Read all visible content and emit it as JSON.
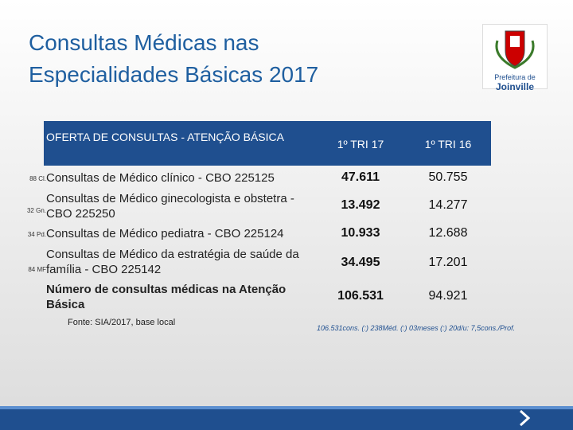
{
  "title": [
    "Consultas Médicas nas",
    "Especialidades Básicas 2017"
  ],
  "logo": {
    "line1": "Prefeitura de",
    "line2": "Joinville"
  },
  "table": {
    "header": [
      "OFERTA DE CONSULTAS - ATENÇÃO BÁSICA",
      "1º TRI 17",
      "1º TRI 16"
    ],
    "rows": [
      [
        "88 Cl.",
        "Consultas de Médico clínico - CBO 225125",
        "47.611",
        "50.755"
      ],
      [
        "32 Gn.",
        "Consultas de Médico ginecologista e obstetra - CBO 225250",
        "13.492",
        "14.277"
      ],
      [
        "34 Pd.",
        "Consultas de Médico pediatra - CBO 225124",
        "10.933",
        "12.688"
      ],
      [
        "84 MF",
        "Consultas de Médico da estratégia de saúde da família - CBO 225142",
        "34.495",
        "17.201"
      ],
      [
        "",
        "Número de consultas médicas na Atenção Básica",
        "106.531",
        "94.921"
      ]
    ]
  },
  "source": "Fonte: SIA/2017, base local",
  "note": "106.531cons. (:) 238Méd. (:) 03meses (:) 20d/u: 7,5cons./Prof."
}
